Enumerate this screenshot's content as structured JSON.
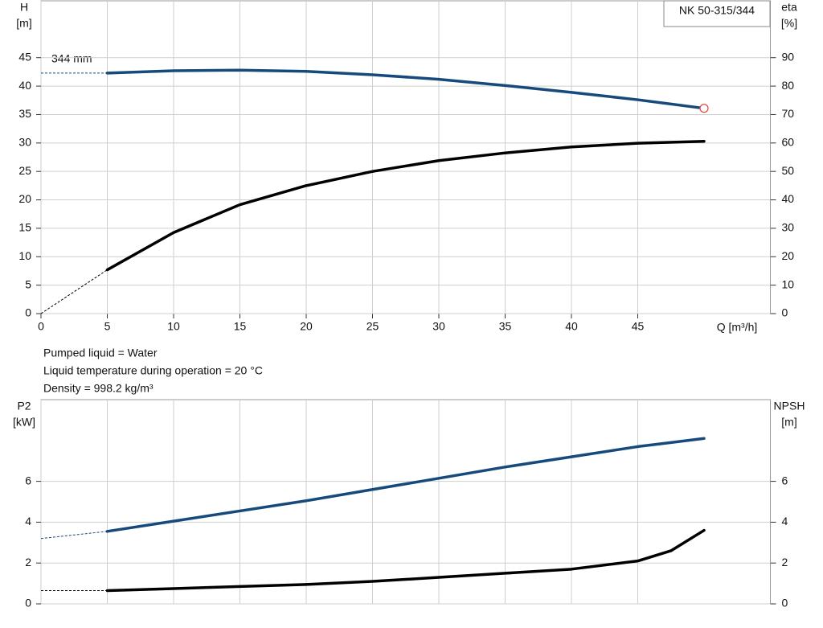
{
  "chart_data": [
    {
      "type": "line",
      "box_label": "NK 50-315/344",
      "annotation": "344 mm",
      "y_label": [
        "H",
        "[m]"
      ],
      "y2_label": [
        "eta",
        "[%]"
      ],
      "x_label": "Q [m³/h]",
      "x": [
        0,
        5,
        10,
        15,
        20,
        25,
        30,
        35,
        40,
        45,
        50
      ],
      "xlim": [
        0,
        55
      ],
      "xticks": [
        0,
        5,
        10,
        15,
        20,
        25,
        30,
        35,
        40,
        45
      ],
      "ylim": [
        0,
        55
      ],
      "yticks": [
        0,
        5,
        10,
        15,
        20,
        25,
        30,
        35,
        40,
        45
      ],
      "y2lim": [
        0,
        110
      ],
      "y2ticks": [
        0,
        10,
        20,
        30,
        40,
        50,
        60,
        70,
        80,
        90
      ],
      "grid": true,
      "series": [
        {
          "name": "H",
          "color": "#174a7c",
          "end_marker": "#e8403a",
          "values": [
            42.3,
            42.3,
            42.7,
            42.8,
            42.6,
            42.0,
            41.2,
            40.1,
            38.9,
            37.6,
            36.1
          ]
        },
        {
          "name": "eta",
          "color": "#000000",
          "axis": "y2",
          "values": [
            0,
            15.4,
            28.5,
            38.3,
            45.0,
            50.0,
            53.8,
            56.5,
            58.6,
            59.9,
            60.6
          ]
        }
      ],
      "notes": [
        "Pumped liquid = Water",
        "Liquid temperature during operation = 20 °C",
        "Density = 998.2 kg/m³"
      ]
    },
    {
      "type": "line",
      "y_label": [
        "P2",
        "[kW]"
      ],
      "y2_label": [
        "NPSH",
        "[m]"
      ],
      "x": [
        0,
        5,
        10,
        15,
        20,
        25,
        30,
        35,
        40,
        45,
        47.5,
        50
      ],
      "xlim": [
        0,
        55
      ],
      "ylim": [
        0,
        10
      ],
      "yticks": [
        0,
        2,
        4,
        6
      ],
      "y2lim": [
        0,
        10
      ],
      "y2ticks": [
        0,
        2,
        4,
        6
      ],
      "grid": true,
      "series": [
        {
          "name": "P2",
          "color": "#174a7c",
          "values": [
            3.2,
            3.55,
            4.05,
            4.55,
            5.05,
            5.6,
            6.15,
            6.7,
            7.2,
            7.7,
            7.9,
            8.1
          ]
        },
        {
          "name": "NPSH",
          "color": "#000000",
          "axis": "y2",
          "values": [
            0.65,
            0.65,
            0.75,
            0.85,
            0.95,
            1.1,
            1.3,
            1.5,
            1.7,
            2.1,
            2.6,
            3.6
          ]
        }
      ]
    }
  ]
}
